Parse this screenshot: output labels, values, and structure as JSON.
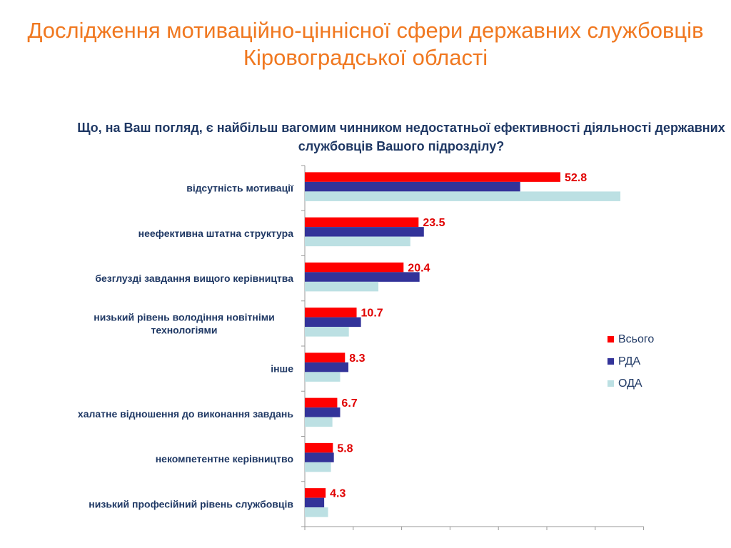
{
  "slide": {
    "title": "Дослідження мотиваційно-ціннісної сфери державних службовців Кіровоградської області"
  },
  "chart_data": {
    "type": "bar",
    "orientation": "horizontal",
    "title": "Що, на Ваш погляд, є найбільш вагомим чинником недостатньої ефективності діяльності державних службовців Вашого підрозділу?",
    "xlabel": "",
    "ylabel": "",
    "xlim": [
      0,
      70
    ],
    "grid": false,
    "legend_position": "right",
    "categories": [
      "відсутність мотивації",
      "неефективна штатна структура",
      "безглузді завдання вищого керівництва",
      "низький рівень володіння новітніми технологіями",
      "інше",
      "халатне відношення до виконання завдань",
      "некомпетентне керівництво",
      "низький професійний рівень службовців"
    ],
    "series": [
      {
        "name": "Всього",
        "color": "#FF0000",
        "values": [
          52.8,
          23.5,
          20.4,
          10.7,
          8.3,
          6.7,
          5.8,
          4.3
        ],
        "show_labels": true
      },
      {
        "name": "РДА",
        "color": "#333399",
        "values": [
          44.5,
          24.6,
          23.7,
          11.6,
          9.0,
          7.3,
          6.0,
          4.0
        ],
        "show_labels": false
      },
      {
        "name": "ОДА",
        "color": "#BCE0E3",
        "values": [
          65.2,
          21.8,
          15.2,
          9.1,
          7.3,
          5.7,
          5.4,
          4.8
        ],
        "show_labels": false
      }
    ]
  }
}
